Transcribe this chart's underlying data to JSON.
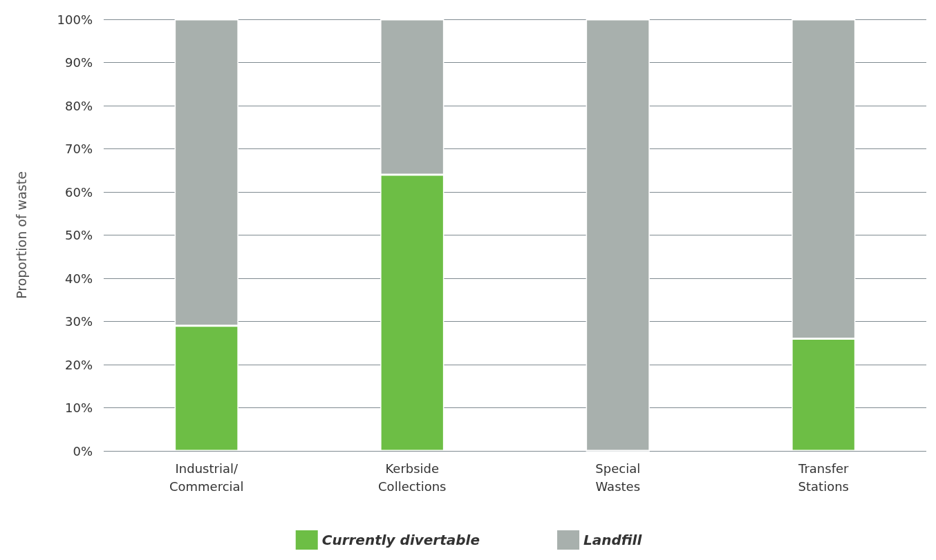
{
  "chart_data": {
    "type": "bar",
    "ylabel": "Proportion of waste",
    "categories": [
      "Industrial/\nCommercial",
      "Kerbside\nCollections",
      "Special\nWastes",
      "Transfer\nStations"
    ],
    "stacked": true,
    "series": [
      {
        "name": "Currently divertable",
        "color": "#6dbe45",
        "values": [
          29,
          64,
          0,
          26
        ]
      },
      {
        "name": "Landfill",
        "color": "#a8b0ad",
        "values": [
          71,
          36,
          100,
          74
        ]
      }
    ],
    "ylim": [
      0,
      100
    ],
    "yticks": [
      {
        "value": 0,
        "label": "0%"
      },
      {
        "value": 10,
        "label": "10%"
      },
      {
        "value": 20,
        "label": "20%"
      },
      {
        "value": 30,
        "label": "30%"
      },
      {
        "value": 40,
        "label": "40%"
      },
      {
        "value": 50,
        "label": "50%"
      },
      {
        "value": 60,
        "label": "60%"
      },
      {
        "value": 70,
        "label": "70%"
      },
      {
        "value": 80,
        "label": "80%"
      },
      {
        "value": 90,
        "label": "90%"
      },
      {
        "value": 100,
        "label": "100%"
      }
    ],
    "grid": "y",
    "legend": "bottom"
  }
}
